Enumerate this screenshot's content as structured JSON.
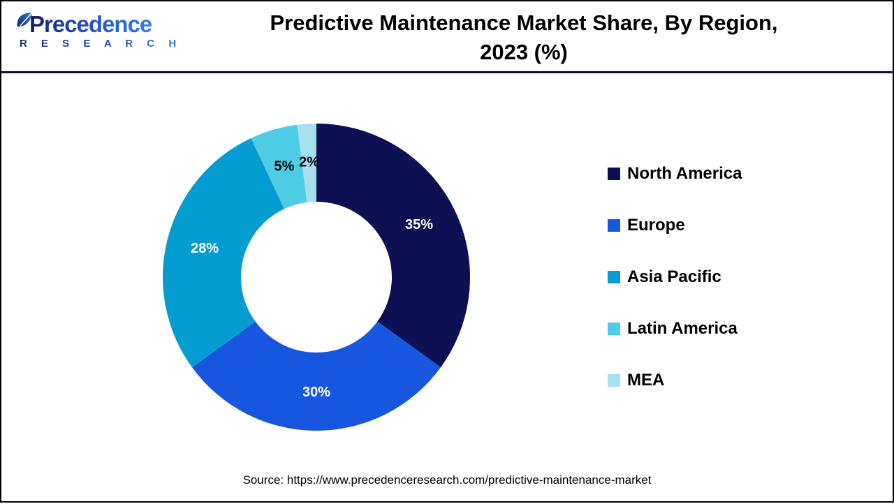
{
  "brand": {
    "name": "Precedence",
    "subname": "R E S E A R C H",
    "color_dark": "#1b2a6e",
    "color_light": "#2f7fe2"
  },
  "header": {
    "title_line1": "Predictive Maintenance Market Share, By Region,",
    "title_line2": "2023 (%)"
  },
  "chart_data": {
    "type": "pie",
    "subtype": "donut",
    "title": "Predictive Maintenance Market Share, By Region, 2023 (%)",
    "unit": "%",
    "categories": [
      "North America",
      "Europe",
      "Asia Pacific",
      "Latin America",
      "MEA"
    ],
    "values": [
      35,
      30,
      28,
      5,
      2
    ],
    "colors": [
      "#0e1054",
      "#1757e0",
      "#059dd1",
      "#4ecbe5",
      "#a5dff0"
    ],
    "slice_labels": [
      "35%",
      "30%",
      "28%",
      "5%",
      "2%"
    ],
    "slice_label_colors": [
      "#ffffff",
      "#ffffff",
      "#ffffff",
      "#000000",
      "#000000"
    ],
    "start_angle_deg": 0,
    "direction": "clockwise",
    "legend_position": "right",
    "hole": true
  },
  "footer": {
    "source": "Source: https://www.precedenceresearch.com/predictive-maintenance-market"
  }
}
